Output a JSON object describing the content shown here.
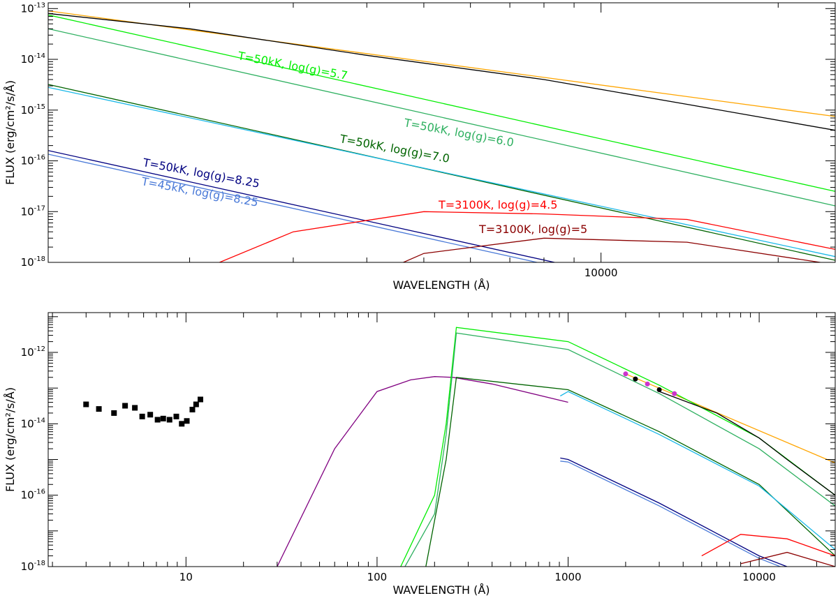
{
  "chart_data": [
    {
      "type": "line",
      "x_scale": "log",
      "y_scale": "log",
      "xlabel": "WAVELENGTH (Å)",
      "ylabel": "FLUX (erg/cm²/s/Å)",
      "xlim": [
        1150,
        25000
      ],
      "ylim": [
        1e-18,
        1.3e-13
      ],
      "x_tick_labels": [
        {
          "x": 10000,
          "text": "10000"
        }
      ],
      "y_tick_labels": [
        {
          "y": 1e-13,
          "text": "10",
          "exp": "-13"
        },
        {
          "y": 1e-14,
          "text": "10",
          "exp": "-14"
        },
        {
          "y": 1e-15,
          "text": "10",
          "exp": "-15"
        },
        {
          "y": 1e-16,
          "text": "10",
          "exp": "-16"
        },
        {
          "y": 1e-17,
          "text": "10",
          "exp": "-17"
        },
        {
          "y": 1e-18,
          "text": "10",
          "exp": "-18"
        }
      ],
      "series": [
        {
          "color": "#ffa500",
          "x": [
            1150,
            25000
          ],
          "y": [
            9e-14,
            7.5e-16
          ]
        },
        {
          "color": "#00ee00",
          "x": [
            1150,
            25000
          ],
          "y": [
            7.5e-14,
            2.5e-17
          ],
          "label": "T=50kK, log(g)=5.7"
        },
        {
          "color": "#2eb060",
          "x": [
            1150,
            25000
          ],
          "y": [
            4e-14,
            1.3e-17
          ],
          "label": "T=50kK, log(g)=6.0"
        },
        {
          "color": "#006400",
          "x": [
            1150,
            25000
          ],
          "y": [
            3.2e-15,
            1.1e-18
          ],
          "label": "T=50kK, log(g)=7.0"
        },
        {
          "color": "#1ab8e8",
          "x": [
            1150,
            25000
          ],
          "y": [
            2.8e-15,
            1.3e-18
          ]
        },
        {
          "color": "#000080",
          "x": [
            1150,
            25000
          ],
          "y": [
            1.6e-16,
            6e-20
          ],
          "label": "T=50kK, log(g)=8.25"
        },
        {
          "color": "#4a7ad8",
          "x": [
            1150,
            25000
          ],
          "y": [
            1.35e-16,
            5e-20
          ],
          "label": "T=45kK, log(g)=8.25"
        },
        {
          "color": "#ff0000",
          "x": [
            1750,
            3000,
            5000,
            8000,
            14000,
            25000
          ],
          "y": [
            3e-19,
            4e-18,
            1e-17,
            9e-18,
            7e-18,
            1.8e-18
          ],
          "label": "T=3100K, log(g)=4.5"
        },
        {
          "color": "#8b0000",
          "x": [
            2800,
            5000,
            8000,
            14000,
            25000
          ],
          "y": [
            8e-20,
            1.5e-18,
            3e-18,
            2.5e-18,
            9e-19
          ],
          "label": "T=3100K, log(g)=5"
        },
        {
          "color": "#000000",
          "x": [
            1150,
            2000,
            4000,
            8000,
            14000,
            25000
          ],
          "y": [
            8e-14,
            4e-14,
            1.2e-14,
            4e-15,
            1.3e-15,
            4e-16
          ]
        }
      ]
    },
    {
      "type": "line",
      "x_scale": "log",
      "y_scale": "log",
      "xlabel": "WAVELENGTH (Å)",
      "ylabel": "FLUX (erg/cm²/s/Å)",
      "xlim": [
        1.9,
        25000
      ],
      "ylim": [
        1e-18,
        1.3e-11
      ],
      "x_tick_labels": [
        {
          "x": 10,
          "text": "10"
        },
        {
          "x": 100,
          "text": "100"
        },
        {
          "x": 1000,
          "text": "1000"
        },
        {
          "x": 10000,
          "text": "10000"
        }
      ],
      "y_tick_labels": [
        {
          "y": 1e-12,
          "text": "10",
          "exp": "-12"
        },
        {
          "y": 1e-14,
          "text": "10",
          "exp": "-14"
        },
        {
          "y": 1e-16,
          "text": "10",
          "exp": "-16"
        },
        {
          "y": 1e-18,
          "text": "10",
          "exp": "-18"
        }
      ],
      "points": {
        "marker": "square",
        "color": "#000000",
        "x": [
          3,
          3.5,
          4.2,
          4.8,
          5.4,
          5.9,
          6.5,
          7.1,
          7.6,
          8.2,
          8.9,
          9.5,
          10.1,
          10.8,
          11.3,
          11.9
        ],
        "y": [
          3.5e-14,
          2.6e-14,
          2e-14,
          3.2e-14,
          2.8e-14,
          1.6e-14,
          1.8e-14,
          1.3e-14,
          1.4e-14,
          1.3e-14,
          1.6e-14,
          1e-14,
          1.2e-14,
          2.5e-14,
          3.5e-14,
          4.8e-14
        ]
      },
      "photometry": [
        {
          "x": 2000,
          "y": 2.5e-13,
          "color": "#cc33cc"
        },
        {
          "x": 2250,
          "y": 1.8e-13,
          "color": "#000000"
        },
        {
          "x": 2600,
          "y": 1.3e-13,
          "color": "#cc33cc"
        },
        {
          "x": 3000,
          "y": 9e-14,
          "color": "#000000"
        },
        {
          "x": 3600,
          "y": 7e-14,
          "color": "#cc33cc"
        }
      ],
      "series": [
        {
          "color": "#800080",
          "x": [
            30,
            60,
            100,
            150,
            200,
            250,
            400,
            1000
          ],
          "y": [
            1e-18,
            2e-15,
            8e-14,
            1.7e-13,
            2.1e-13,
            2e-13,
            1.3e-13,
            4e-14
          ]
        },
        {
          "color": "#ffa500",
          "x": [
            2000,
            25000
          ],
          "y": [
            2.5e-13,
            8e-16
          ]
        },
        {
          "color": "#00ee00",
          "x": [
            133,
            200,
            230,
            260,
            1000,
            3000,
            10000,
            25000
          ],
          "y": [
            1e-18,
            1e-16,
            1e-14,
            5e-12,
            2e-12,
            1.2e-13,
            4e-15,
            1e-16
          ]
        },
        {
          "color": "#2eb060",
          "x": [
            140,
            200,
            230,
            260,
            1000,
            3000,
            10000,
            25000
          ],
          "y": [
            1e-18,
            3e-17,
            5e-15,
            3.5e-12,
            1.2e-12,
            7e-14,
            2e-15,
            5e-17
          ]
        },
        {
          "color": "#006400",
          "x": [
            180,
            230,
            260,
            1000,
            3000,
            10000,
            25000
          ],
          "y": [
            1e-18,
            1e-15,
            2e-13,
            9e-14,
            6e-15,
            2e-16,
            2e-18
          ]
        },
        {
          "color": "#1ab8e8",
          "x": [
            910,
            1000,
            3000,
            10000,
            25000
          ],
          "y": [
            6e-14,
            8e-14,
            5e-15,
            1.8e-16,
            3e-18
          ]
        },
        {
          "color": "#000080",
          "x": [
            910,
            1000,
            3000,
            10000,
            25000
          ],
          "y": [
            1.1e-15,
            1e-15,
            6e-17,
            2e-18,
            3e-19
          ]
        },
        {
          "color": "#4a7ad8",
          "x": [
            910,
            1000,
            3000,
            10000,
            25000
          ],
          "y": [
            9e-16,
            8.5e-16,
            5e-17,
            1.7e-18,
            2.5e-19
          ]
        },
        {
          "color": "#ff0000",
          "x": [
            5000,
            8000,
            14000,
            25000
          ],
          "y": [
            2e-18,
            8e-18,
            6e-18,
            2e-18
          ]
        },
        {
          "color": "#8b0000",
          "x": [
            8000,
            14000,
            25000
          ],
          "y": [
            1.2e-18,
            2.5e-18,
            1e-18
          ]
        },
        {
          "color": "#000000",
          "x": [
            3000,
            6000,
            10000,
            14000,
            25000
          ],
          "y": [
            8e-14,
            2e-14,
            4e-15,
            1e-15,
            1e-16
          ]
        }
      ]
    }
  ]
}
